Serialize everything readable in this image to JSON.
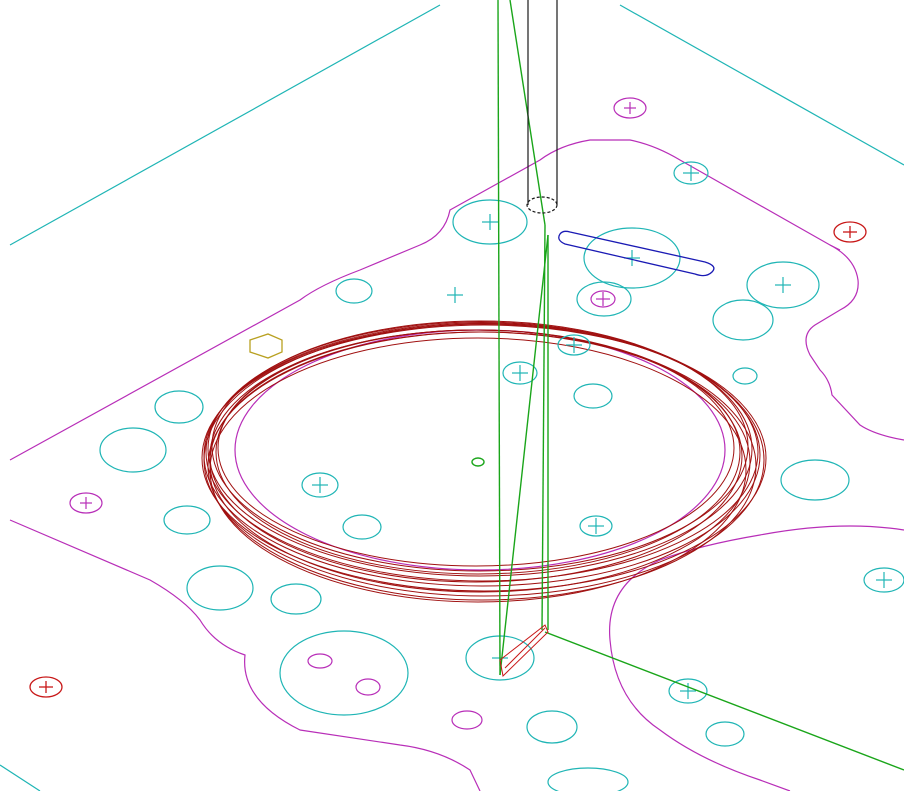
{
  "scene": {
    "background": "#ffffff",
    "colors": {
      "cyan": "#1fb5b5",
      "magenta": "#b82eb8",
      "dark_red": "#a01010",
      "red": "#c81818",
      "green": "#1aa51a",
      "blue": "#1a1ab4",
      "olive": "#b8a020",
      "tool": "#1a1a1a"
    },
    "layers": [
      {
        "name": "stock-outline",
        "color": "cyan"
      },
      {
        "name": "part-profile",
        "color": "magenta"
      },
      {
        "name": "bore-toolpath",
        "color": "dark_red"
      },
      {
        "name": "tool-axis-moves",
        "color": "green"
      },
      {
        "name": "cutting-tool",
        "color": "tool"
      },
      {
        "name": "slot-profile",
        "color": "blue"
      },
      {
        "name": "hole-features",
        "color": "cyan"
      },
      {
        "name": "marker-holes",
        "color": "red"
      }
    ],
    "text": []
  }
}
